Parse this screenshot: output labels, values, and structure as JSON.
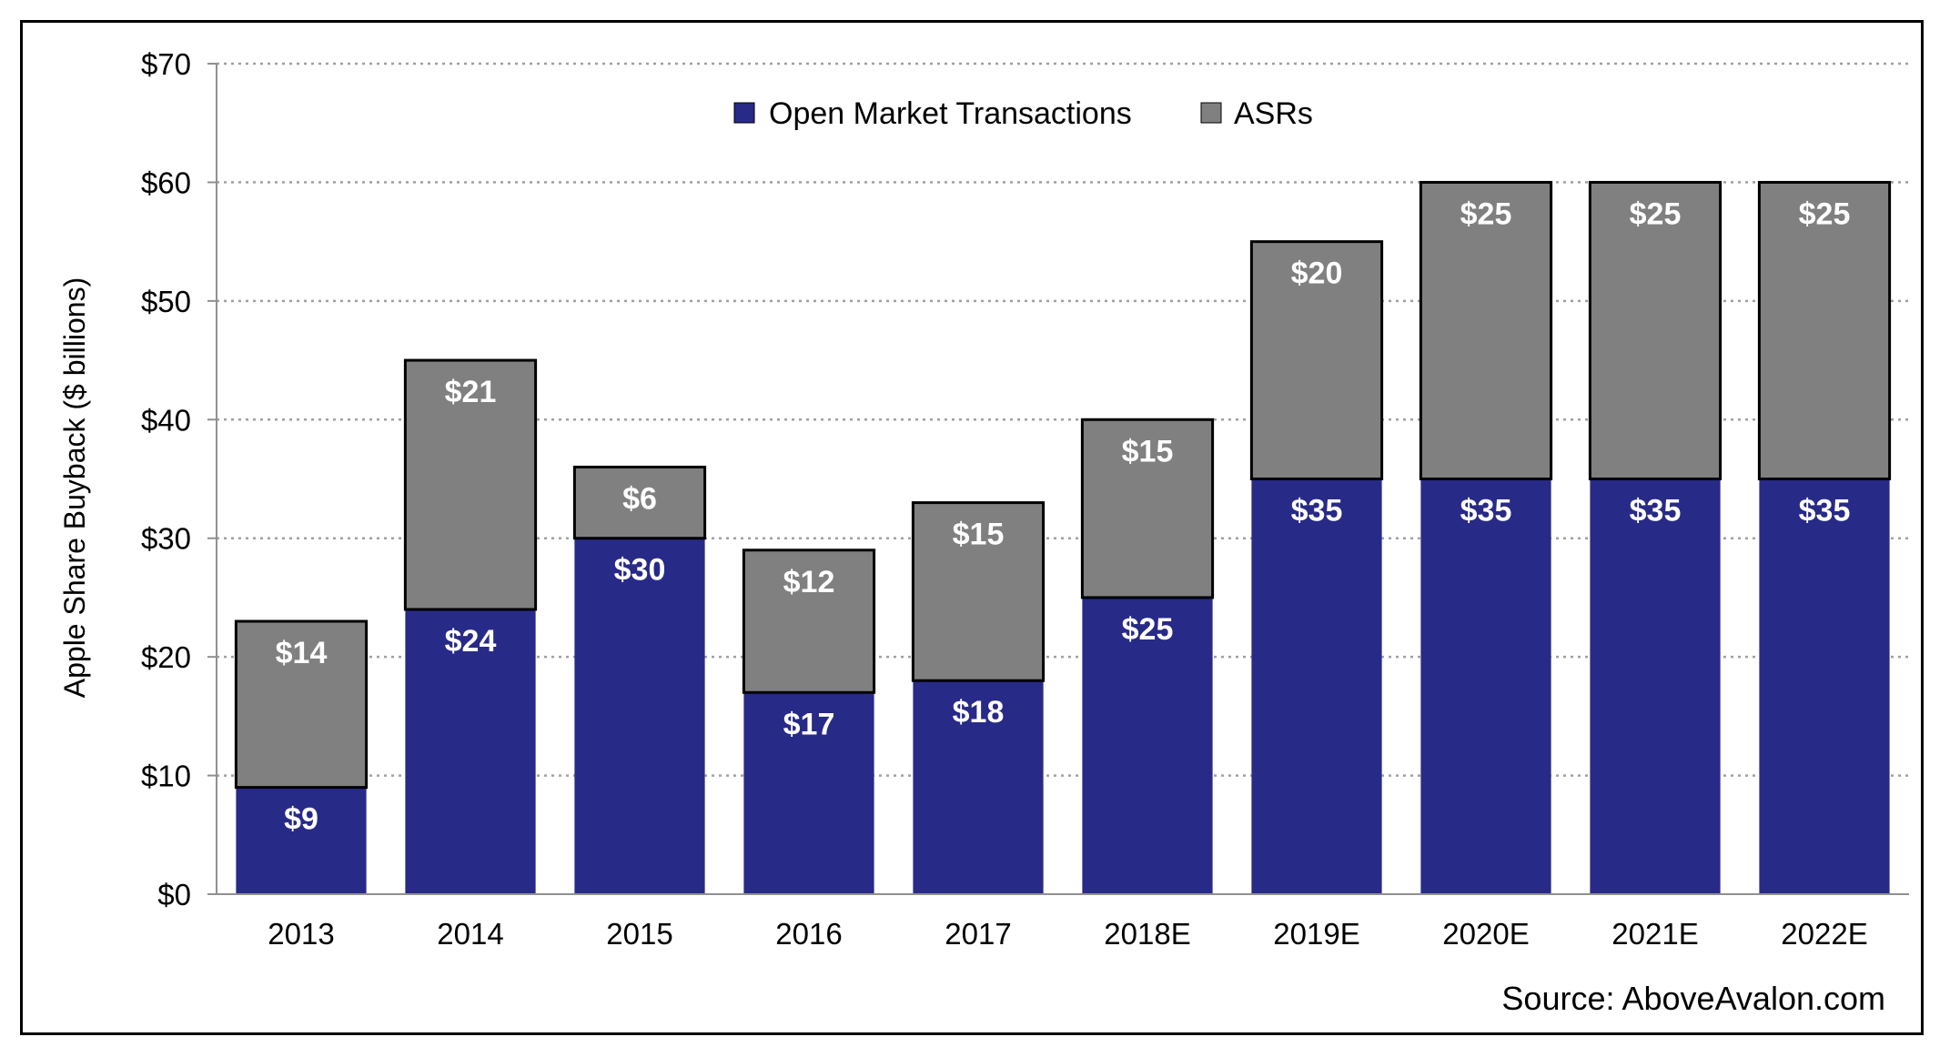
{
  "chart_data": {
    "type": "bar",
    "stacked": true,
    "categories": [
      "2013",
      "2014",
      "2015",
      "2016",
      "2017",
      "2018E",
      "2019E",
      "2020E",
      "2021E",
      "2022E"
    ],
    "series": [
      {
        "name": "Open Market Transactions",
        "color": "#282a87",
        "values": [
          9,
          24,
          30,
          17,
          18,
          25,
          35,
          35,
          35,
          35
        ]
      },
      {
        "name": "ASRs",
        "color": "#808080",
        "values": [
          14,
          21,
          6,
          12,
          15,
          15,
          20,
          25,
          25,
          25
        ]
      }
    ],
    "ylabel": "Apple Share Buyback  ($ billions)",
    "ylim": [
      0,
      70
    ],
    "yticks": [
      0,
      10,
      20,
      30,
      40,
      50,
      60,
      70
    ],
    "ytick_labels": [
      "$0",
      "$10",
      "$20",
      "$30",
      "$40",
      "$50",
      "$60",
      "$70"
    ],
    "value_prefix": "$",
    "grid": true,
    "legend_position": "top-center"
  },
  "source": "Source: AboveAvalon.com"
}
